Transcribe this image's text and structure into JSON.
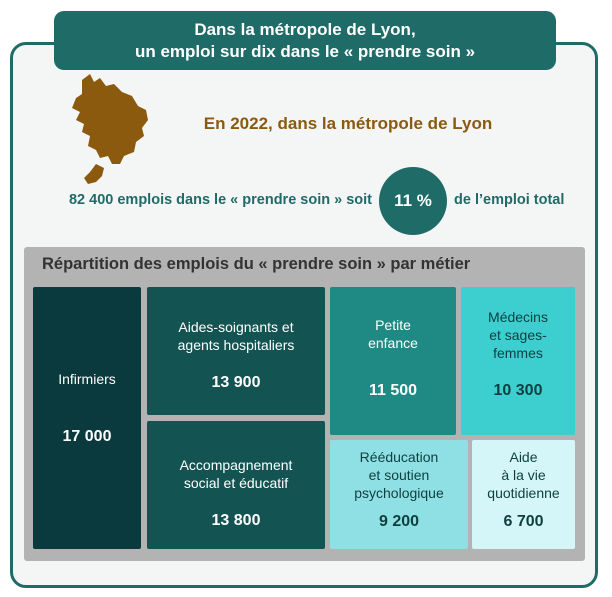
{
  "header": {
    "title_line1": "Dans la métropole de Lyon,",
    "title_line2": "un emploi sur dix dans le « prendre soin »"
  },
  "subtitle": "En 2022, dans la métropole de Lyon",
  "key_stat": {
    "left_text": "82 400 emplois dans le « prendre soin » soit",
    "percent": "11 %",
    "right_text": "de l’emploi total"
  },
  "colors": {
    "primary": "#1f6b68",
    "accent_brown": "#8a5a10",
    "map_fill": "#8b5a0e"
  },
  "chart_data": {
    "type": "treemap",
    "title": "Répartition des emplois du « prendre soin » par métier",
    "items": [
      {
        "label": "Infirmiers",
        "value": 17000,
        "value_label": "17 000",
        "color": "#0a3a3e"
      },
      {
        "label": "Aides-soignants et\nagents hospitaliers",
        "value": 13900,
        "value_label": "13 900",
        "color": "#135453"
      },
      {
        "label": "Accompagnement\nsocial et éducatif",
        "value": 13800,
        "value_label": "13 800",
        "color": "#135453"
      },
      {
        "label": "Petite\nenfance",
        "value": 11500,
        "value_label": "11 500",
        "color": "#1f8a83"
      },
      {
        "label": "Médecins\net sages-\nfemmes",
        "value": 10300,
        "value_label": "10 300",
        "color": "#3dcfcf"
      },
      {
        "label": "Rééducation\net soutien\npsychologique",
        "value": 9200,
        "value_label": "9 200",
        "color": "#8fe0e4"
      },
      {
        "label": "Aide\nà la vie\nquotidienne",
        "value": 6700,
        "value_label": "6 700",
        "color": "#d5f6f8"
      }
    ]
  }
}
